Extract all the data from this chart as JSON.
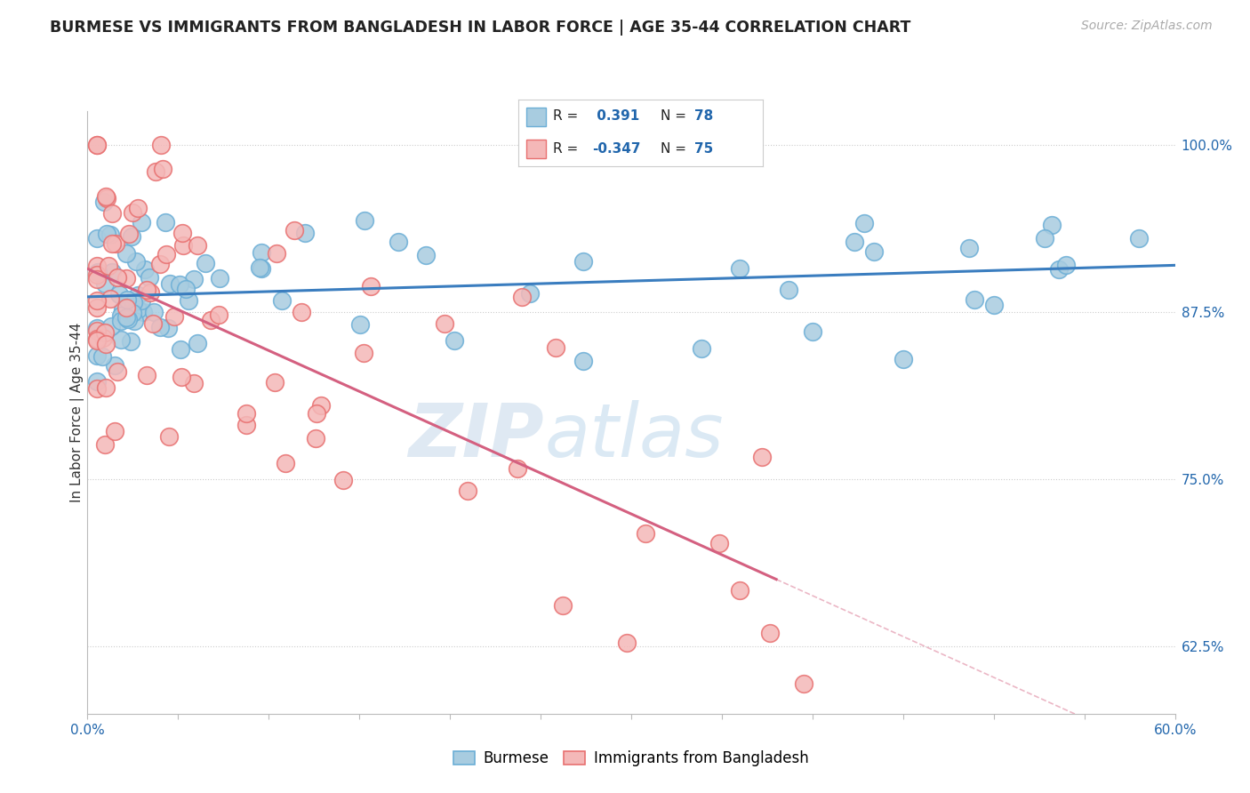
{
  "title": "BURMESE VS IMMIGRANTS FROM BANGLADESH IN LABOR FORCE | AGE 35-44 CORRELATION CHART",
  "source": "Source: ZipAtlas.com",
  "ylabel": "In Labor Force | Age 35-44",
  "xlim": [
    0.0,
    0.6
  ],
  "ylim": [
    0.575,
    1.025
  ],
  "yticks": [
    0.625,
    0.75,
    0.875,
    1.0
  ],
  "ytick_labels": [
    "62.5%",
    "75.0%",
    "87.5%",
    "100.0%"
  ],
  "xticks": [
    0.0,
    0.05,
    0.1,
    0.15,
    0.2,
    0.25,
    0.3,
    0.35,
    0.4,
    0.45,
    0.5,
    0.55,
    0.6
  ],
  "burmese_R": 0.391,
  "burmese_N": 78,
  "bangladesh_R": -0.347,
  "bangladesh_N": 75,
  "burmese_color": "#a8cce0",
  "burmese_edge": "#6baed6",
  "bangladesh_color": "#f4b8b8",
  "bangladesh_edge": "#e87070",
  "line_blue": "#3a7dbf",
  "line_pink": "#d46080",
  "legend_label_burmese": "Burmese",
  "legend_label_bangladesh": "Immigrants from Bangladesh",
  "watermark_zip": "ZIP",
  "watermark_atlas": "atlas",
  "background_color": "#ffffff",
  "grid_color": "#cccccc",
  "title_color": "#222222",
  "axis_label_color": "#333333",
  "tick_color": "#2166ac",
  "source_color": "#aaaaaa"
}
